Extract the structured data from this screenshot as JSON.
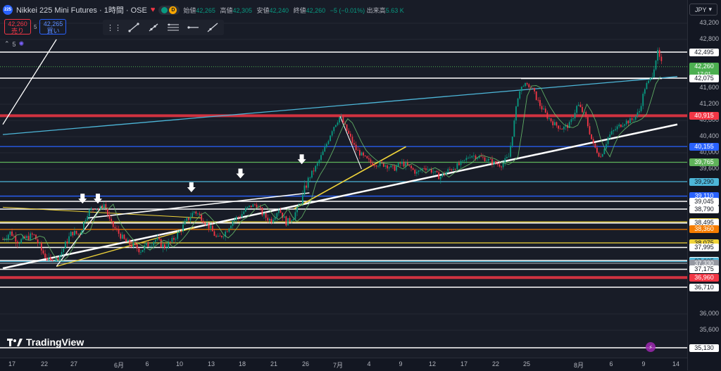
{
  "header": {
    "logo_text": "225",
    "title": "Nikkei 225 Mini Futures · 1時間 · OSE",
    "badge_letter": "D",
    "ohlc": [
      {
        "label": "始値",
        "value": "42,265"
      },
      {
        "label": "高値",
        "value": "42,305"
      },
      {
        "label": "安値",
        "value": "42,240"
      },
      {
        "label": "終値",
        "value": "42,260"
      }
    ],
    "change": "−5 (−0.01%)",
    "volume_label": "出来高",
    "volume_value": "5.63 K"
  },
  "trade": {
    "sell_price": "42,260",
    "sell_label": "売り",
    "spread": "5",
    "buy_price": "42,265",
    "buy_label": "買い"
  },
  "mini": {
    "count": "5"
  },
  "currency": "JPY",
  "brand": "TradingView",
  "colors": {
    "red": "#f23645",
    "cyan": "#4db6d8",
    "blue": "#2962ff",
    "green": "#5fb35a",
    "yellow": "#f0d43a",
    "white": "#ffffff",
    "orange": "#f57c00",
    "grey": "#9598a1"
  },
  "chart_data": {
    "type": "candlestick",
    "ylim": [
      34800,
      43400
    ],
    "y_ticks": [
      {
        "value": 43200,
        "label": "43,200"
      },
      {
        "value": 42800,
        "label": "42,800"
      },
      {
        "value": 41600,
        "label": "41,600"
      },
      {
        "value": 41200,
        "label": "41,200"
      },
      {
        "value": 40800,
        "label": "40,800"
      },
      {
        "value": 40400,
        "label": "40,400"
      },
      {
        "value": 40000,
        "label": "40,000"
      },
      {
        "value": 39600,
        "label": "39,600"
      },
      {
        "value": 36000,
        "label": "36,000"
      },
      {
        "value": 35600,
        "label": "35,600"
      }
    ],
    "x_ticks": [
      "17",
      "22",
      "27",
      "6月",
      "6",
      "10",
      "13",
      "18",
      "21",
      "26",
      "7月",
      "4",
      "9",
      "12",
      "17",
      "22",
      "25",
      "8月",
      "6",
      "9",
      "14"
    ],
    "price_levels": [
      {
        "value": 42495,
        "label": "42,495",
        "color": "#ffffff",
        "style": "white"
      },
      {
        "value": 42260,
        "label": "42,260",
        "color": "#4caf50",
        "style": "current",
        "timer": "17:01"
      },
      {
        "value": 42075,
        "label": "42,075",
        "color": "#ffffff",
        "style": "white"
      },
      {
        "value": 40915,
        "label": "40,915",
        "color": "#f23645",
        "style": "red"
      },
      {
        "value": 40155,
        "label": "40,155",
        "color": "#2962ff",
        "style": "blue"
      },
      {
        "value": 39765,
        "label": "39,765",
        "color": "#5fb35a",
        "style": "green"
      },
      {
        "value": 39290,
        "label": "39,290",
        "color": "#4db6d8",
        "style": "cyan"
      },
      {
        "value": 39110,
        "label": "39,110",
        "color": "#2962ff",
        "style": "blue"
      },
      {
        "value": 39045,
        "label": "39,045",
        "color": "#ffffff",
        "style": "white"
      },
      {
        "value": 38790,
        "label": "38,790",
        "color": "#ffffff",
        "style": "white"
      },
      {
        "value": 38520,
        "label": "38,520",
        "color": "#f0d43a",
        "style": "yellow"
      },
      {
        "value": 38495,
        "label": "38,495",
        "color": "#ffffff",
        "style": "white"
      },
      {
        "value": 38360,
        "label": "38,360",
        "color": "#f57c00",
        "style": "orange"
      },
      {
        "value": 38075,
        "label": "38,075",
        "color": "#f0d43a",
        "style": "yellow"
      },
      {
        "value": 37995,
        "label": "37,995",
        "color": "#ffffff",
        "style": "white"
      },
      {
        "value": 37765,
        "label": "37,765",
        "color": "#ffffff",
        "style": "white"
      },
      {
        "value": 37605,
        "label": "37,605",
        "color": "#4db6d8",
        "style": "cyan"
      },
      {
        "value": 37330,
        "label": "37,330",
        "color": "#9598a1",
        "style": "grey"
      },
      {
        "value": 37175,
        "label": "37,175",
        "color": "#ffffff",
        "style": "white"
      },
      {
        "value": 36960,
        "label": "36,960",
        "color": "#f23645",
        "style": "red"
      },
      {
        "value": 36710,
        "label": "36,710",
        "color": "#ffffff",
        "style": "white"
      },
      {
        "value": 35130,
        "label": "35,130",
        "color": "#ffffff",
        "style": "white"
      }
    ],
    "price_path": [
      [
        0,
        38150
      ],
      [
        0.5,
        38300
      ],
      [
        1,
        38100
      ],
      [
        2,
        38250
      ],
      [
        2.5,
        37950
      ],
      [
        3,
        37750
      ],
      [
        3.3,
        37700
      ],
      [
        3.8,
        37900
      ],
      [
        4,
        38000
      ],
      [
        4.5,
        38300
      ],
      [
        5,
        38250
      ],
      [
        5.5,
        38700
      ],
      [
        6,
        38850
      ],
      [
        6.3,
        38800
      ],
      [
        6.6,
        38950
      ],
      [
        7,
        38500
      ],
      [
        7.5,
        38300
      ],
      [
        8,
        38100
      ],
      [
        9,
        37950
      ],
      [
        9.5,
        38050
      ],
      [
        10,
        38150
      ],
      [
        10.5,
        38000
      ],
      [
        11,
        38100
      ],
      [
        11.5,
        38300
      ],
      [
        12,
        38550
      ],
      [
        12.5,
        38750
      ],
      [
        13,
        38600
      ],
      [
        13.5,
        38400
      ],
      [
        14,
        38150
      ],
      [
        14.5,
        38300
      ],
      [
        15,
        38550
      ],
      [
        15.5,
        38650
      ],
      [
        16,
        38850
      ],
      [
        16.5,
        38950
      ],
      [
        17,
        38650
      ],
      [
        17.5,
        38550
      ],
      [
        18,
        38800
      ],
      [
        18.5,
        38500
      ],
      [
        19,
        38650
      ],
      [
        19.5,
        39050
      ],
      [
        20,
        39400
      ],
      [
        20.5,
        39700
      ],
      [
        21,
        40100
      ],
      [
        21.5,
        40600
      ],
      [
        22,
        40900
      ],
      [
        22.5,
        40500
      ],
      [
        23,
        40100
      ],
      [
        23.5,
        39900
      ],
      [
        24,
        39750
      ],
      [
        25,
        39700
      ],
      [
        25.5,
        39600
      ],
      [
        26,
        39750
      ],
      [
        26.5,
        39650
      ],
      [
        27,
        39500
      ],
      [
        27.5,
        39650
      ],
      [
        28,
        39550
      ],
      [
        28.5,
        39400
      ],
      [
        29,
        39550
      ],
      [
        29.5,
        39650
      ],
      [
        30,
        39750
      ],
      [
        30.5,
        39950
      ],
      [
        31,
        39900
      ],
      [
        31.5,
        39850
      ],
      [
        32,
        39750
      ],
      [
        32.5,
        39700
      ],
      [
        33,
        39900
      ],
      [
        33.3,
        40600
      ],
      [
        33.6,
        41400
      ],
      [
        34,
        41800
      ],
      [
        34.5,
        41600
      ],
      [
        35,
        41200
      ],
      [
        35.5,
        40900
      ],
      [
        36,
        40700
      ],
      [
        36.5,
        40600
      ],
      [
        37,
        40700
      ],
      [
        37.5,
        41200
      ],
      [
        38,
        40900
      ],
      [
        38.5,
        40200
      ],
      [
        39,
        39900
      ],
      [
        39.5,
        40400
      ],
      [
        40,
        40600
      ],
      [
        40.5,
        40750
      ],
      [
        41,
        40800
      ],
      [
        41.5,
        41000
      ],
      [
        42,
        41800
      ],
      [
        42.5,
        42300
      ],
      [
        42.7,
        42495
      ],
      [
        43,
        42260
      ]
    ],
    "time_span": [
      0,
      44
    ]
  }
}
